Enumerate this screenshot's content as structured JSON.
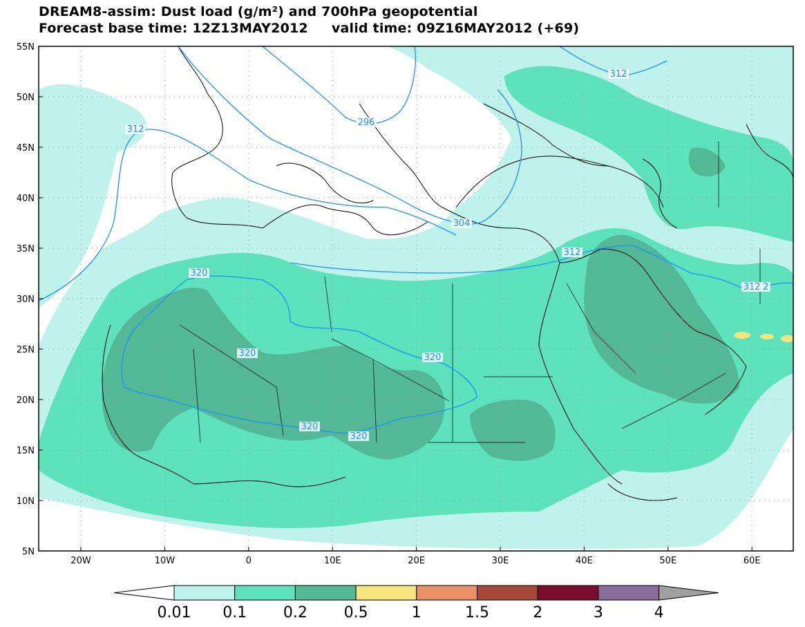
{
  "title_line1": "DREAM8-assim: Dust load (g/m²) and 700hPa geopotential",
  "title_line2": "Forecast base time: 12Z13MAY2012     valid time: 09Z16MAY2012 (+69)",
  "map": {
    "lat_labels": [
      "55N",
      "50N",
      "45N",
      "40N",
      "35N",
      "30N",
      "25N",
      "20N",
      "15N",
      "10N",
      "5N"
    ],
    "lon_labels": [
      "20W",
      "10W",
      "0",
      "10E",
      "20E",
      "30E",
      "40E",
      "50E",
      "60E"
    ],
    "contour_labels": [
      "312",
      "312",
      "296",
      "312",
      "320",
      "320",
      "320",
      "320",
      "320",
      "312",
      "312",
      "304"
    ]
  },
  "colorbar": {
    "labels": [
      "0.01",
      "0.1",
      "0.2",
      "0.5",
      "1",
      "1.5",
      "2",
      "3",
      "4"
    ],
    "colors": [
      "#ffffff",
      "#bff2ea",
      "#5de2bc",
      "#52b896",
      "#f5e57c",
      "#e99066",
      "#a8483b",
      "#7a0d2e",
      "#8b6a9c",
      "#a0a0a0"
    ]
  }
}
